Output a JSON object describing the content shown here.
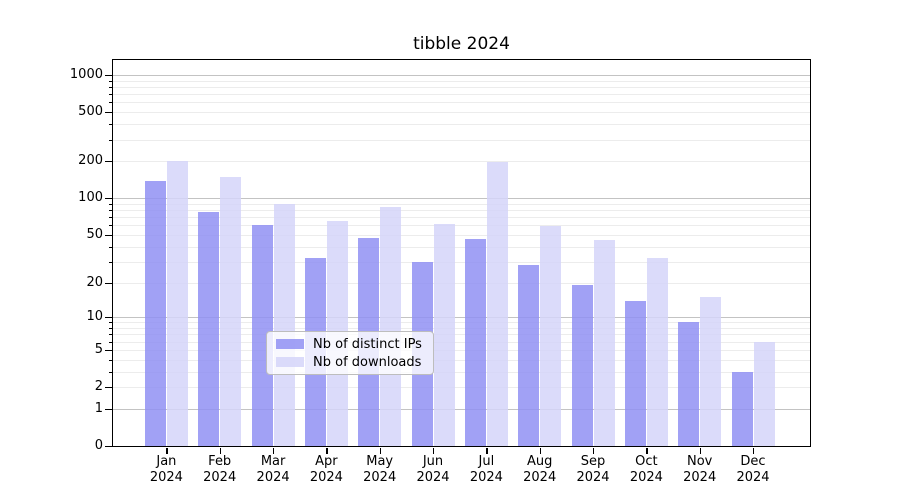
{
  "title": "tibble 2024",
  "chart_data": {
    "type": "bar",
    "title": "tibble 2024",
    "categories": [
      "Jan 2024",
      "Feb 2024",
      "Mar 2024",
      "Apr 2024",
      "May 2024",
      "Jun 2024",
      "Jul 2024",
      "Aug 2024",
      "Sep 2024",
      "Oct 2024",
      "Nov 2024",
      "Dec 2024"
    ],
    "series": [
      {
        "name": "Nb of distinct IPs",
        "color": "rgba(145,145,243,0.85)",
        "values": [
          138,
          77,
          60,
          32,
          47,
          30,
          46,
          28,
          19,
          14,
          9,
          3
        ]
      },
      {
        "name": "Nb of downloads",
        "color": "rgba(213,213,249,0.85)",
        "values": [
          200,
          150,
          90,
          65,
          84,
          62,
          197,
          59,
          45,
          32,
          15,
          6
        ]
      }
    ],
    "xlabel": "",
    "ylabel": "",
    "yscale": "log1p",
    "ylim": [
      0,
      1320
    ],
    "ytick_values": [
      0,
      1,
      2,
      5,
      10,
      20,
      50,
      100,
      200,
      500,
      1000
    ],
    "gridlines_major": [
      1,
      10,
      100,
      1000
    ],
    "gridlines_minor": [
      2,
      3,
      4,
      5,
      6,
      7,
      8,
      9,
      20,
      30,
      40,
      50,
      60,
      70,
      80,
      90,
      200,
      300,
      400,
      500,
      600,
      700,
      800,
      900
    ],
    "grid": true,
    "legend_position": "inside-bottom-center"
  },
  "colors": {
    "background": "#ffffff",
    "axis": "#000000",
    "gridline_major": "#c3c3c3",
    "gridline_minor": "#ececec",
    "legend_border": "#bdbdbd",
    "legend_background": "rgba(255,255,255,0.8)",
    "text": "#000000"
  }
}
